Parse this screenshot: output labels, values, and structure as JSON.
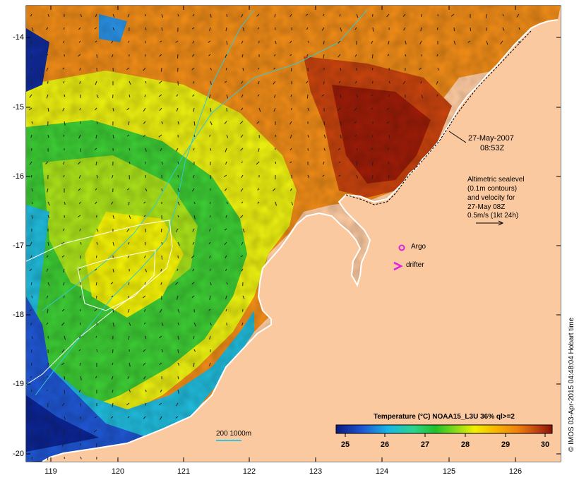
{
  "map": {
    "colors": {
      "land": "#fbc9a0",
      "coast": "#ffffff",
      "cold": "#1533a0",
      "hot": "#8a1208"
    },
    "y_axis_labels": [
      "-14",
      "-15",
      "-16",
      "-17",
      "-18",
      "-19",
      "-20"
    ],
    "x_axis_labels": [
      "119",
      "120",
      "121",
      "122",
      "123",
      "124",
      "125",
      "126"
    ]
  },
  "annotations": {
    "date": "27-May-2007",
    "time": "08:53Z",
    "altimetry_line1": "Altimetric sealevel",
    "altimetry_line2": "(0.1m contours)",
    "altimetry_line3": "and velocity for",
    "altimetry_line4": "27-May 08Z",
    "altimetry_line5": "0.5m/s (1kt 24h)",
    "argo": "Argo",
    "drifter": "drifter",
    "isobaths": "200  1000m"
  },
  "legend": {
    "title": "Temperature (°C) NOAA15_L3U 36% ql>=2",
    "ticks": [
      "25",
      "26",
      "27",
      "28",
      "29",
      "30"
    ]
  },
  "credit": "© IMOS 03-Apr-2015 04:48:04 Hobart time"
}
